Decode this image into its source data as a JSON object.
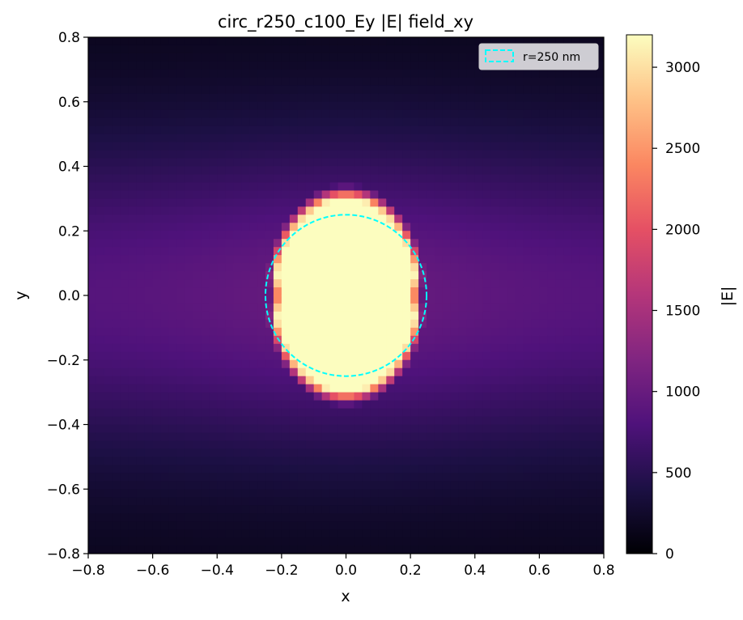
{
  "chart_data": {
    "type": "heatmap",
    "title": "circ_r250_c100_Ey |E| field_xy",
    "xlabel": "x",
    "ylabel": "y",
    "xlim": [
      -0.8,
      0.8
    ],
    "ylim": [
      -0.8,
      0.8
    ],
    "xticks": [
      "−0.8",
      "−0.6",
      "−0.4",
      "−0.2",
      "0.0",
      "0.2",
      "0.4",
      "0.6",
      "0.8"
    ],
    "yticks": [
      "−0.8",
      "−0.6",
      "−0.4",
      "−0.2",
      "0.0",
      "0.2",
      "0.4",
      "0.6",
      "0.8"
    ],
    "xtick_values": [
      -0.8,
      -0.6,
      -0.4,
      -0.2,
      0.0,
      0.2,
      0.4,
      0.6,
      0.8
    ],
    "ytick_values": [
      -0.8,
      -0.6,
      -0.4,
      -0.2,
      0.0,
      0.2,
      0.4,
      0.6,
      0.8
    ],
    "colormap": "magma",
    "colorbar": {
      "label": "|E|",
      "range": [
        0,
        3200
      ],
      "ticks": [
        "0",
        "500",
        "1000",
        "1500",
        "2000",
        "2500",
        "3000"
      ],
      "tick_values": [
        0,
        500,
        1000,
        1500,
        2000,
        2500,
        3000
      ]
    },
    "grid": false,
    "field_summary": {
      "grid_cells": 64,
      "peak_region": "central lobe |y| < 0.33, |x| < 0.25, saturated at ~3200",
      "center_value": 3200,
      "side_lobe_value_at_x_edges": 900,
      "minimum_value_at_y_edges": 100
    },
    "overlay": {
      "shape": "circle",
      "radius": 0.25,
      "center": [
        0,
        0
      ],
      "style": "dashed",
      "color": "#00ffff",
      "legend_label": "r=250 nm"
    },
    "legend_placement": "top-right"
  }
}
